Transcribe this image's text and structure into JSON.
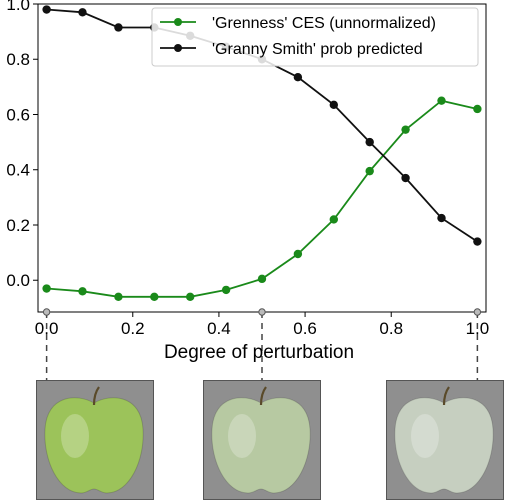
{
  "chart_data": {
    "type": "line",
    "xlabel": "Degree of perturbation",
    "ylabel": "",
    "xlim": [
      -0.02,
      1.02
    ],
    "ylim": [
      -0.115,
      1.0
    ],
    "x_ticks": [
      0.0,
      0.2,
      0.4,
      0.6,
      0.8,
      1.0
    ],
    "x_tick_labels": [
      "0.0",
      "0.2",
      "0.4",
      "0.6",
      "0.8",
      "1.0"
    ],
    "y_ticks": [
      0.0,
      0.2,
      0.4,
      0.6,
      0.8,
      1.0
    ],
    "y_tick_labels": [
      "0.0",
      "0.2",
      "0.4",
      "0.6",
      "0.8",
      "1.0"
    ],
    "x": [
      0.0,
      0.0833,
      0.1667,
      0.25,
      0.3333,
      0.4167,
      0.5,
      0.5833,
      0.6667,
      0.75,
      0.8333,
      0.9167,
      1.0
    ],
    "series": [
      {
        "name": "'Grenness' CES (unnormalized)",
        "color": "#1a8a1a",
        "values": [
          -0.03,
          -0.04,
          -0.06,
          -0.06,
          -0.06,
          -0.035,
          0.005,
          0.095,
          0.22,
          0.395,
          0.545,
          0.65,
          0.62
        ]
      },
      {
        "name": "'Granny Smith' prob predicted",
        "color": "#111111",
        "values": [
          0.98,
          0.97,
          0.915,
          0.915,
          0.885,
          0.845,
          0.8,
          0.735,
          0.635,
          0.5,
          0.37,
          0.225,
          0.14
        ]
      }
    ],
    "legend_position": "top-right",
    "grid": false,
    "perturbation_markers": [
      0.0,
      0.5,
      1.0
    ],
    "thumbnails": [
      {
        "perturbation": 0.0,
        "apple_color": "#9cc35a"
      },
      {
        "perturbation": 0.5,
        "apple_color": "#b7c9a2"
      },
      {
        "perturbation": 1.0,
        "apple_color": "#c6cfc0"
      }
    ]
  }
}
